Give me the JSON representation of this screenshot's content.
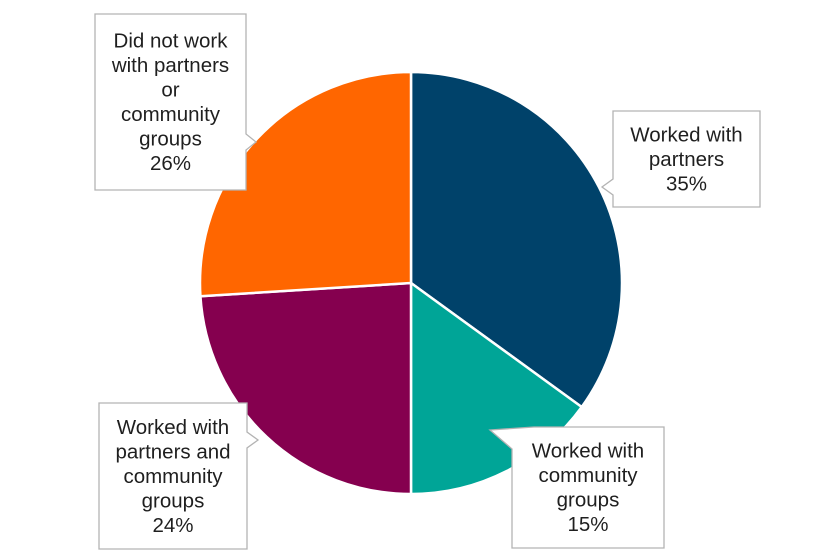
{
  "chart_data": {
    "type": "pie",
    "title": "",
    "slices": [
      {
        "label": "Worked with partners",
        "value": 35,
        "display": "35%",
        "color": "#00426a"
      },
      {
        "label": "Worked with community groups",
        "value": 15,
        "display": "15%",
        "color": "#00a597"
      },
      {
        "label": "Worked with partners and community groups",
        "value": 24,
        "display": "24%",
        "color": "#85004f"
      },
      {
        "label": "Did not work with partners or community groups",
        "value": 26,
        "display": "26%",
        "color": "#ff6600"
      }
    ],
    "callout_lines": [
      [
        "Worked with",
        "partners",
        "35%"
      ],
      [
        "Worked with",
        "community",
        "groups",
        "15%"
      ],
      [
        "Worked with",
        "partners and",
        "community",
        "groups",
        "24%"
      ],
      [
        "Did not work",
        "with  partners",
        "or",
        "community",
        "groups",
        "26%"
      ]
    ],
    "legend": "none (data callouts)"
  }
}
